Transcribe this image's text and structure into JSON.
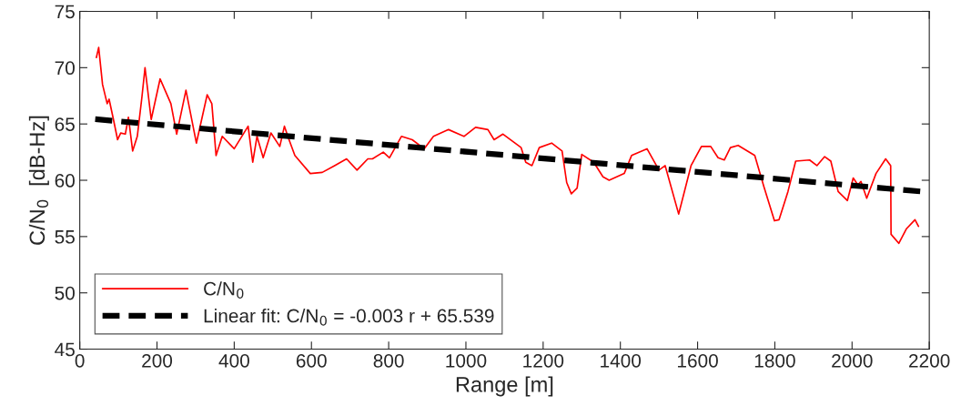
{
  "chart_data": {
    "type": "line",
    "xlabel": "Range [m]",
    "ylabel": "C/N$_{0}$  [dB-Hz]",
    "xlim": [
      0,
      2200
    ],
    "xticks": [
      0,
      200,
      400,
      600,
      800,
      1000,
      1200,
      1400,
      1600,
      1800,
      2000,
      2200
    ],
    "ylim": [
      45,
      75
    ],
    "yticks": [
      45,
      50,
      55,
      60,
      65,
      70,
      75
    ],
    "grid": false,
    "legend": "bottom left",
    "series": [
      {
        "name": "C/N$_{0}$",
        "color": "#ff0000",
        "line_style": "solid",
        "x": [
          43,
          49,
          59,
          71,
          76,
          86,
          98,
          106,
          118,
          126,
          137,
          149,
          161,
          169,
          185,
          208,
          236,
          251,
          275,
          302,
          330,
          342,
          353,
          369,
          400,
          436,
          448,
          459,
          475,
          495,
          518,
          530,
          542,
          557,
          597,
          628,
          660,
          691,
          718,
          746,
          758,
          786,
          802,
          833,
          861,
          892,
          916,
          955,
          995,
          1025,
          1057,
          1073,
          1096,
          1143,
          1155,
          1171,
          1190,
          1222,
          1249,
          1261,
          1273,
          1288,
          1300,
          1331,
          1355,
          1371,
          1410,
          1429,
          1469,
          1500,
          1516,
          1551,
          1583,
          1610,
          1634,
          1653,
          1669,
          1685,
          1705,
          1748,
          1772,
          1799,
          1811,
          1834,
          1854,
          1890,
          1909,
          1929,
          1945,
          1964,
          1988,
          2003,
          2015,
          2023,
          2038,
          2062,
          2087,
          2100,
          2101,
          2121,
          2141,
          2163,
          2172
        ],
        "values": [
          70.9,
          71.8,
          68.5,
          66.8,
          67.2,
          65.6,
          63.6,
          64.2,
          64.1,
          65.6,
          62.6,
          63.9,
          67.4,
          70.0,
          65.4,
          69.0,
          66.8,
          64.1,
          68.0,
          63.3,
          67.6,
          66.8,
          62.2,
          63.9,
          62.8,
          64.8,
          61.6,
          63.9,
          62.0,
          64.2,
          63.0,
          64.8,
          63.6,
          62.2,
          60.6,
          60.7,
          61.3,
          61.9,
          60.9,
          61.9,
          61.9,
          62.5,
          62.0,
          63.9,
          63.6,
          62.8,
          63.9,
          64.5,
          63.9,
          64.7,
          64.5,
          63.6,
          64.1,
          62.9,
          61.6,
          61.3,
          62.9,
          63.3,
          62.6,
          59.8,
          58.8,
          59.3,
          62.3,
          61.6,
          60.3,
          60.0,
          60.6,
          62.2,
          62.8,
          60.9,
          61.3,
          57.0,
          61.3,
          63.0,
          63.0,
          62.0,
          61.8,
          62.9,
          63.1,
          62.2,
          59.4,
          56.4,
          56.5,
          59.0,
          61.7,
          61.8,
          61.3,
          62.1,
          61.7,
          59.0,
          58.2,
          60.2,
          59.6,
          59.9,
          58.4,
          60.6,
          61.9,
          61.3,
          55.2,
          54.4,
          55.7,
          56.5,
          55.9
        ]
      },
      {
        "name": "Linear fit: C/N$_{0}$ = -0.003 r + 65.539",
        "color": "#000000",
        "line_style": "dashed",
        "x": [
          40,
          2180
        ],
        "values": [
          65.42,
          59.0
        ]
      }
    ]
  }
}
